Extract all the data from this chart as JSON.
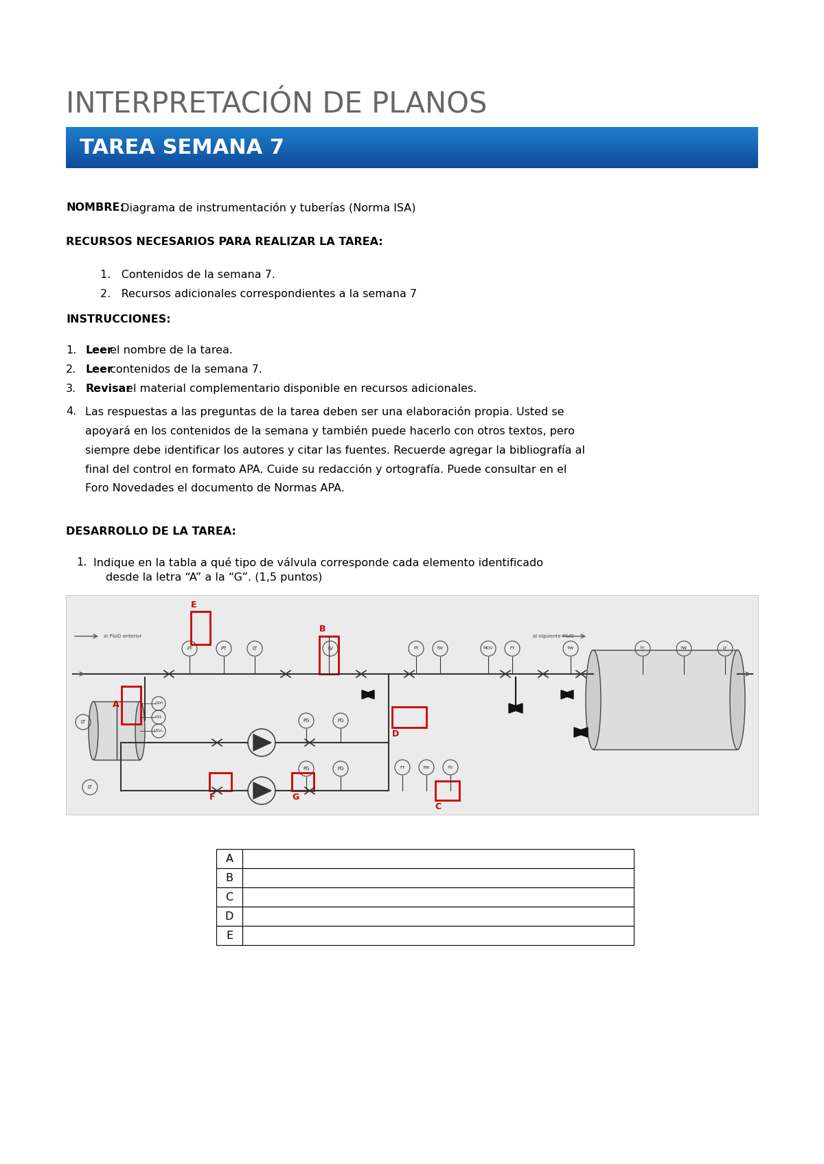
{
  "title": "INTERPRETACIÓN DE PLANOS",
  "subtitle": "TAREA SEMANA 7",
  "subtitle_bg_top": "#1E7FCC",
  "subtitle_bg_bottom": "#1255A0",
  "subtitle_text_color": "#FFFFFF",
  "nombre_label": "NOMBRE:",
  "nombre_value": " Diagrama de instrumentación y tuberías (Norma ISA)",
  "recursos_title": "RECURSOS NECESARIOS PARA REALIZAR LA TAREA:",
  "recursos_items": [
    "Contenidos de la semana 7.",
    "Recursos adicionales correspondientes a la semana 7"
  ],
  "instrucciones_title": "INSTRUCCIONES:",
  "instr1_bold": "Leer",
  "instr1_rest": " el nombre de la tarea.",
  "instr2_bold": "Leer",
  "instr2_rest": " contenidos de la semana 7.",
  "instr3_bold": "Revisar",
  "instr3_rest": " el material complementario disponible en recursos adicionales.",
  "instr4_line1": "Las respuestas a las preguntas de la tarea deben ser una elaboración propia. Usted se",
  "instr4_line2": "apoyará en los contenidos de la semana y también puede hacerlo con otros textos, pero",
  "instr4_line3": "siempre debe identificar los autores y citar las fuentes. Recuerde agregar la bibliografía al",
  "instr4_line4": "final del control en formato APA. Cuide su redacción y ortografía. Puede consultar en el",
  "instr4_line5": "Foro Novedades el documento de Normas APA.",
  "desarrollo_title": "DESARROLLO DE LA TAREA:",
  "q1_line1": "Indique en la tabla a qué tipo de válvula corresponde cada elemento identificado",
  "q1_line2": "desde la letra “A” a la “G”. (1,5 puntos)",
  "table_rows": [
    "A",
    "B",
    "C",
    "D",
    "E"
  ],
  "bg_color": "#FFFFFF",
  "text_color": "#000000",
  "title_color": "#666666",
  "diag_bg": "#EBEBEB"
}
